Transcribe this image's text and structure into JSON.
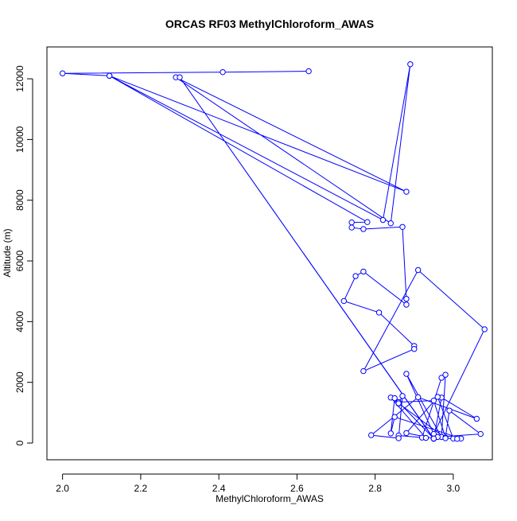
{
  "chart_data": {
    "type": "line",
    "title": "ORCAS RF03 MethylChloroform_AWAS",
    "xlabel": "MethylChloroform_AWAS",
    "ylabel": "Altitude (m)",
    "xlim": [
      1.96,
      3.1
    ],
    "ylim": [
      -550,
      13050
    ],
    "xticks": [
      "2.0",
      "2.2",
      "2.4",
      "2.6",
      "2.8",
      "3.0"
    ],
    "yticks": [
      "0",
      "2000",
      "4000",
      "6000",
      "8000",
      "10000",
      "12000"
    ],
    "grid": false,
    "series_color": "#0000ff",
    "points": [
      [
        2.63,
        12250
      ],
      [
        2.41,
        12220
      ],
      [
        2.0,
        12180
      ],
      [
        2.12,
        12100
      ],
      [
        2.82,
        7350
      ],
      [
        2.89,
        12480
      ],
      [
        2.84,
        7240
      ],
      [
        2.29,
        12050
      ],
      [
        2.88,
        8280
      ],
      [
        2.12,
        12100
      ],
      [
        2.78,
        7280
      ],
      [
        2.74,
        7270
      ],
      [
        2.74,
        7100
      ],
      [
        2.77,
        7050
      ],
      [
        2.87,
        7120
      ],
      [
        2.88,
        4750
      ],
      [
        2.88,
        4560
      ],
      [
        2.77,
        5650
      ],
      [
        2.75,
        5500
      ],
      [
        2.72,
        4680
      ],
      [
        2.81,
        4300
      ],
      [
        2.9,
        3200
      ],
      [
        2.9,
        3100
      ],
      [
        2.77,
        2370
      ],
      [
        2.91,
        5700
      ],
      [
        3.08,
        3750
      ],
      [
        2.95,
        300
      ],
      [
        2.88,
        2280
      ],
      [
        2.97,
        200
      ],
      [
        2.98,
        2250
      ],
      [
        2.97,
        2150
      ],
      [
        2.92,
        180
      ],
      [
        2.86,
        250
      ],
      [
        2.93,
        170
      ],
      [
        2.84,
        1500
      ],
      [
        2.86,
        1300
      ],
      [
        2.87,
        1550
      ],
      [
        2.86,
        160
      ],
      [
        2.79,
        260
      ],
      [
        2.91,
        1510
      ],
      [
        3.06,
        800
      ],
      [
        2.97,
        1500
      ],
      [
        2.95,
        150
      ],
      [
        2.86,
        1350
      ],
      [
        2.95,
        1400
      ],
      [
        2.98,
        180
      ],
      [
        2.99,
        1070
      ],
      [
        3.07,
        300
      ],
      [
        2.96,
        200
      ],
      [
        2.95,
        140
      ],
      [
        2.3,
        12050
      ],
      [
        2.95,
        150
      ],
      [
        2.88,
        330
      ],
      [
        2.96,
        1520
      ],
      [
        3.0,
        150
      ],
      [
        3.02,
        150
      ],
      [
        2.85,
        860
      ],
      [
        2.84,
        320
      ],
      [
        2.85,
        1480
      ],
      [
        2.86,
        1310
      ],
      [
        2.98,
        160
      ],
      [
        3.01,
        140
      ]
    ]
  }
}
